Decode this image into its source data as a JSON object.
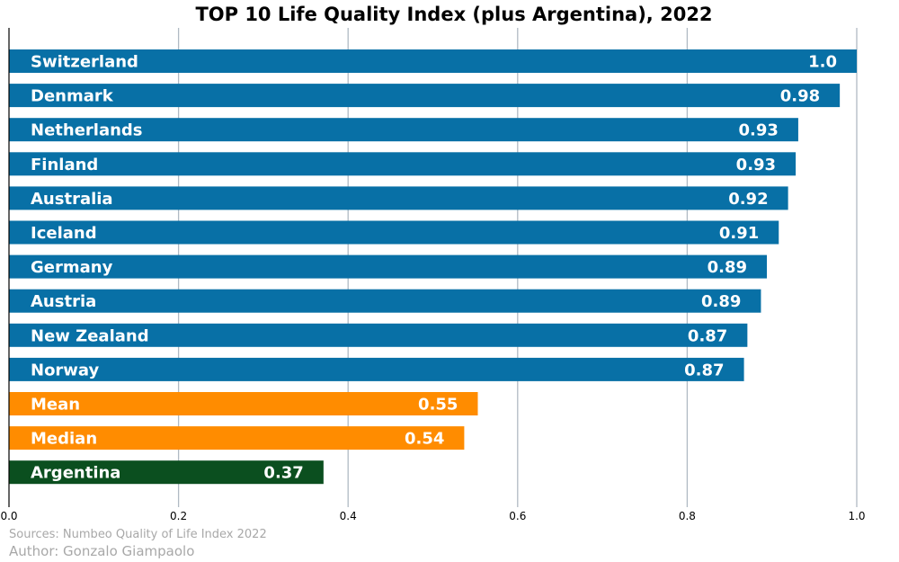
{
  "chart_data": {
    "type": "bar",
    "orientation": "horizontal",
    "title": "TOP 10 Life Quality Index (plus Argentina), 2022",
    "xlim": [
      0,
      1.0
    ],
    "xticks": [
      "0.0",
      "0.2",
      "0.4",
      "0.6",
      "0.8",
      "1.0"
    ],
    "grid": "vertical",
    "categories": [
      "Switzerland",
      "Denmark",
      "Netherlands",
      "Finland",
      "Australia",
      "Iceland",
      "Germany",
      "Austria",
      "New Zealand",
      "Norway",
      "Mean",
      "Median",
      "Argentina"
    ],
    "values": [
      1.0,
      0.98,
      0.931,
      0.928,
      0.919,
      0.908,
      0.894,
      0.887,
      0.871,
      0.867,
      0.553,
      0.537,
      0.371
    ],
    "value_labels": [
      "1.0",
      "0.98",
      "0.93",
      "0.93",
      "0.92",
      "0.91",
      "0.89",
      "0.89",
      "0.87",
      "0.87",
      "0.55",
      "0.54",
      "0.37"
    ],
    "bar_colors": [
      "#0870a6",
      "#0870a6",
      "#0870a6",
      "#0870a6",
      "#0870a6",
      "#0870a6",
      "#0870a6",
      "#0870a6",
      "#0870a6",
      "#0870a6",
      "#ff8c00",
      "#ff8c00",
      "#0b4f1f"
    ]
  },
  "footer": {
    "source": "Sources: Numbeo Quality of Life Index 2022",
    "author": "Author: Gonzalo Giampaolo"
  }
}
